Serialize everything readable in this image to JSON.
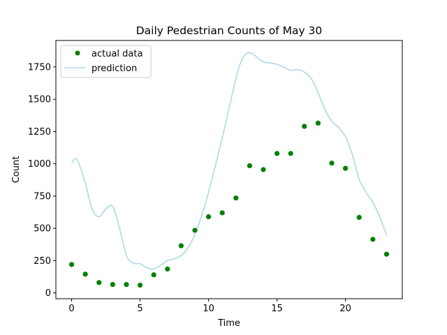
{
  "chart_data": {
    "type": "scatter",
    "title": "Daily Pedestrian Counts of May 30",
    "xlabel": "Time",
    "ylabel": "Count",
    "xlim": [
      -1.15,
      24.15
    ],
    "ylim": [
      -45,
      1955
    ],
    "xticks": [
      0,
      5,
      10,
      15,
      20
    ],
    "yticks": [
      0,
      250,
      500,
      750,
      1000,
      1250,
      1500,
      1750
    ],
    "grid": false,
    "legend_position": "top-left",
    "series": [
      {
        "name": "actual data",
        "kind": "scatter",
        "color": "#008000",
        "x": [
          0,
          1,
          2,
          3,
          4,
          5,
          6,
          7,
          8,
          9,
          10,
          11,
          12,
          13,
          14,
          15,
          16,
          17,
          18,
          19,
          20,
          21,
          22,
          23
        ],
        "y": [
          220,
          145,
          80,
          65,
          65,
          60,
          140,
          185,
          365,
          485,
          590,
          620,
          735,
          985,
          955,
          1080,
          1080,
          1290,
          1315,
          1005,
          965,
          585,
          415,
          300
        ]
      },
      {
        "name": "prediction",
        "kind": "line",
        "color": "#add8e6",
        "x": [
          0,
          0.25,
          0.5,
          1,
          1.5,
          2,
          2.5,
          3,
          3.5,
          4,
          4.5,
          5,
          5.5,
          6,
          6.5,
          7,
          7.5,
          8,
          8.5,
          9,
          9.5,
          10,
          11,
          12,
          12.5,
          13,
          13.5,
          14,
          15,
          16,
          16.5,
          17,
          17.5,
          18,
          18.5,
          19,
          19.5,
          20,
          20.5,
          21,
          21.5,
          22,
          22.5,
          23
        ],
        "y": [
          1005,
          1040,
          1010,
          850,
          650,
          590,
          650,
          670,
          500,
          290,
          230,
          225,
          195,
          185,
          215,
          250,
          265,
          290,
          350,
          450,
          600,
          780,
          1200,
          1660,
          1820,
          1860,
          1830,
          1790,
          1770,
          1725,
          1730,
          1710,
          1660,
          1550,
          1420,
          1330,
          1280,
          1210,
          1070,
          880,
          780,
          700,
          590,
          445
        ]
      }
    ]
  }
}
